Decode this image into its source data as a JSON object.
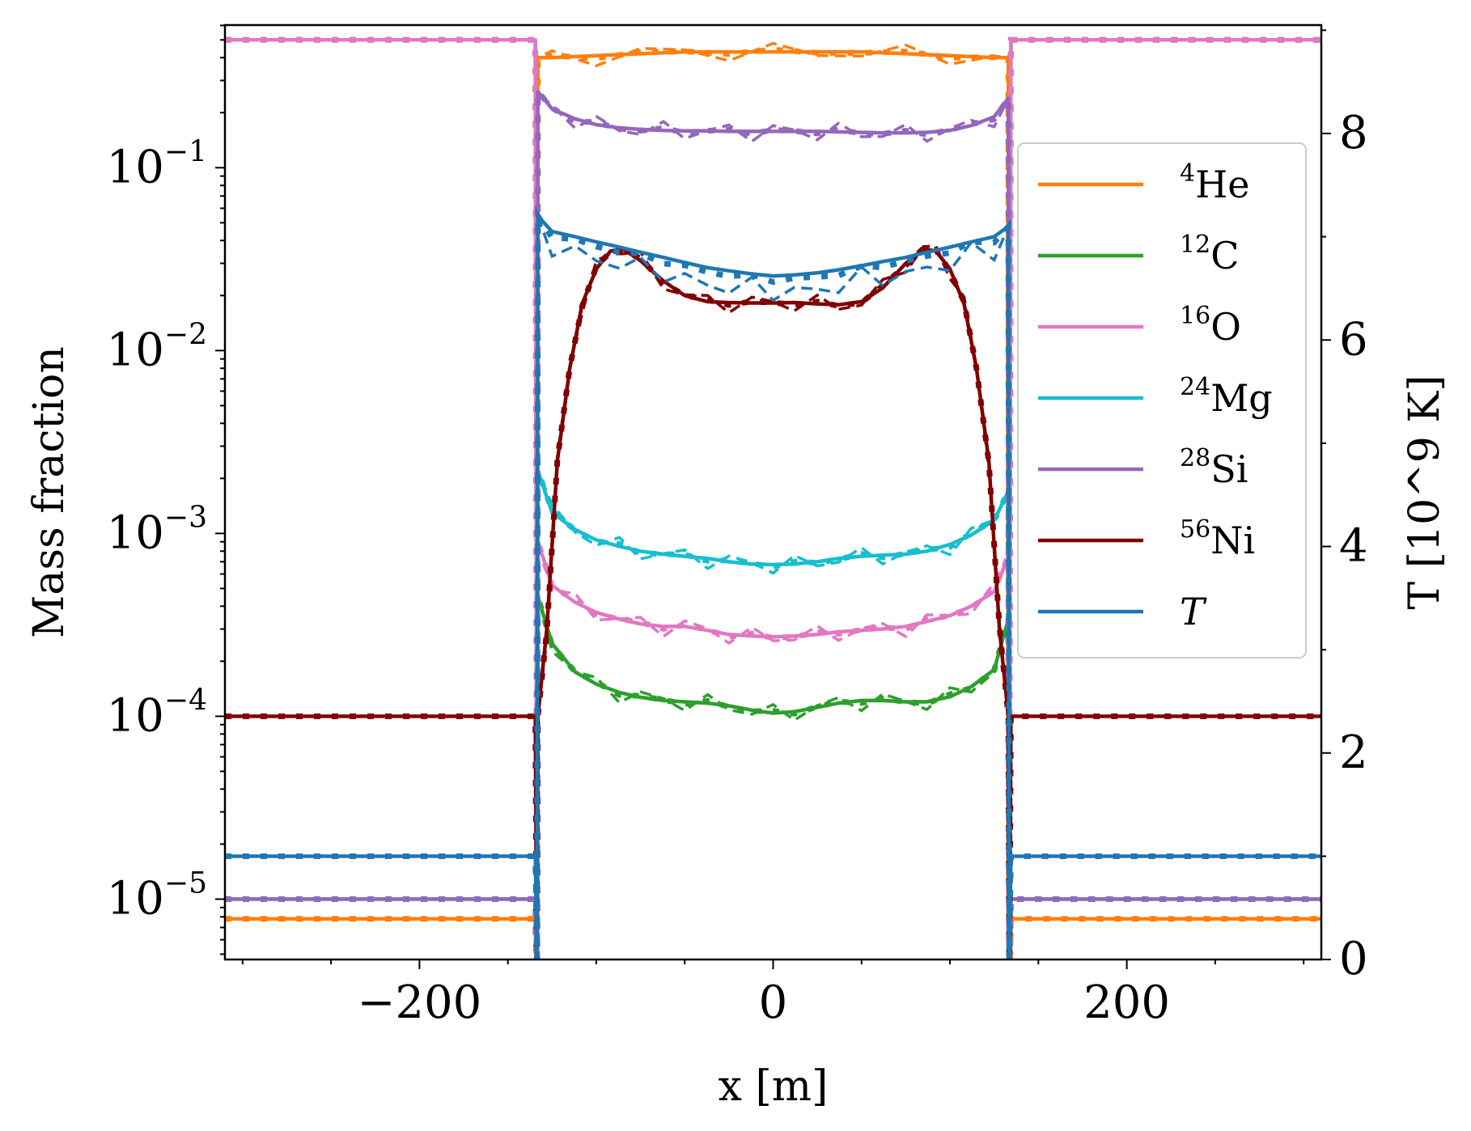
{
  "chart_data": {
    "type": "line",
    "xlabel": "x [m]",
    "ylabel_left": "Mass fraction",
    "ylabel_right": "T [10^9 K]",
    "xlim": [
      -310,
      310
    ],
    "ylim_left_log10": [
      -5.33,
      -0.22
    ],
    "ylim_right": [
      0,
      9.05
    ],
    "x_ticks": [
      {
        "value": -200,
        "label": "−200"
      },
      {
        "value": 0,
        "label": "0"
      },
      {
        "value": 200,
        "label": "200"
      }
    ],
    "y_left_ticks": [
      {
        "exp": -1,
        "base": "10",
        "sup": "−1"
      },
      {
        "exp": -2,
        "base": "10",
        "sup": "−2"
      },
      {
        "exp": -3,
        "base": "10",
        "sup": "−3"
      },
      {
        "exp": -4,
        "base": "10",
        "sup": "−4"
      },
      {
        "exp": -5,
        "base": "10",
        "sup": "−5"
      }
    ],
    "y_right_ticks": [
      {
        "value": 0,
        "label": "0"
      },
      {
        "value": 2,
        "label": "2"
      },
      {
        "value": 4,
        "label": "4"
      },
      {
        "value": 6,
        "label": "6"
      },
      {
        "value": 8,
        "label": "8"
      }
    ],
    "burn_front_m": 133,
    "series": [
      {
        "key": "he4",
        "mass": "4",
        "symbol": "He",
        "color": "#ff7f0e",
        "axis": "left",
        "outside": 7.8e-06,
        "x": [
          -133,
          -125,
          -100,
          -75,
          -50,
          -25,
          0,
          25,
          50,
          75,
          100,
          125,
          133
        ],
        "values": [
          0.4,
          0.4,
          0.41,
          0.42,
          0.43,
          0.43,
          0.43,
          0.43,
          0.43,
          0.42,
          0.41,
          0.4,
          0.4
        ]
      },
      {
        "key": "c12",
        "mass": "12",
        "symbol": "C",
        "color": "#2ca02c",
        "axis": "left",
        "outside": 0.5,
        "x": [
          -133,
          -125,
          -112,
          -100,
          -87,
          -75,
          -62,
          -50,
          -37,
          -25,
          -12,
          0,
          12,
          25,
          37,
          50,
          62,
          75,
          87,
          100,
          112,
          125,
          133
        ],
        "values": [
          0.00045,
          0.00025,
          0.000175,
          0.00015,
          0.000135,
          0.000127,
          0.000122,
          0.00012,
          0.000118,
          0.000114,
          0.000108,
          0.000104,
          0.000106,
          0.000112,
          0.000118,
          0.000122,
          0.000122,
          0.00012,
          0.00012,
          0.000128,
          0.000145,
          0.00018,
          0.00034
        ]
      },
      {
        "key": "o16",
        "mass": "16",
        "symbol": "O",
        "color": "#e377c2",
        "axis": "left",
        "outside": 0.5,
        "x": [
          -133,
          -125,
          -112,
          -100,
          -87,
          -75,
          -62,
          -50,
          -37,
          -25,
          -12,
          0,
          12,
          25,
          37,
          50,
          62,
          75,
          87,
          100,
          112,
          125,
          133
        ],
        "values": [
          0.0009,
          0.00052,
          0.00042,
          0.00037,
          0.00034,
          0.00032,
          0.00031,
          0.00031,
          0.000295,
          0.00028,
          0.000275,
          0.000272,
          0.000275,
          0.00028,
          0.00029,
          0.000295,
          0.0003,
          0.00031,
          0.00033,
          0.000355,
          0.0004,
          0.00048,
          0.00075
        ]
      },
      {
        "key": "mg24",
        "mass": "24",
        "symbol": "Mg",
        "color": "#17becf",
        "axis": "left",
        "outside": 1e-05,
        "x": [
          -133,
          -125,
          -112,
          -100,
          -87,
          -75,
          -62,
          -50,
          -37,
          -25,
          -12,
          0,
          12,
          25,
          37,
          50,
          62,
          75,
          87,
          100,
          112,
          125,
          133
        ],
        "values": [
          0.0022,
          0.0013,
          0.00105,
          0.00092,
          0.00085,
          0.0008,
          0.00077,
          0.00075,
          0.00073,
          0.0007,
          0.00068,
          0.000675,
          0.00068,
          0.0007,
          0.00073,
          0.00075,
          0.00076,
          0.00077,
          0.0008,
          0.00087,
          0.00098,
          0.00118,
          0.0017
        ]
      },
      {
        "key": "si28",
        "mass": "28",
        "symbol": "Si",
        "color": "#9467bd",
        "axis": "left",
        "outside": 1e-05,
        "x": [
          -133,
          -125,
          -112,
          -100,
          -87,
          -75,
          -62,
          -50,
          -37,
          -25,
          -12,
          0,
          12,
          25,
          37,
          50,
          62,
          75,
          87,
          100,
          112,
          125,
          133
        ],
        "values": [
          0.26,
          0.21,
          0.185,
          0.172,
          0.165,
          0.162,
          0.16,
          0.159,
          0.159,
          0.158,
          0.158,
          0.158,
          0.158,
          0.158,
          0.157,
          0.156,
          0.155,
          0.155,
          0.156,
          0.16,
          0.17,
          0.19,
          0.24
        ]
      },
      {
        "key": "ni56",
        "mass": "56",
        "symbol": "Ni",
        "color": "#800000",
        "axis": "left",
        "outside": 0.0001,
        "x": [
          -133,
          -128,
          -122,
          -115,
          -108,
          -100,
          -92,
          -85,
          -75,
          -62,
          -50,
          -37,
          -25,
          -12,
          0,
          12,
          25,
          37,
          50,
          62,
          75,
          85,
          92,
          100,
          108,
          115,
          122,
          128,
          133
        ],
        "values": [
          0.0001,
          0.0003,
          0.0025,
          0.008,
          0.018,
          0.028,
          0.035,
          0.036,
          0.031,
          0.024,
          0.02,
          0.0185,
          0.0183,
          0.0182,
          0.0182,
          0.0183,
          0.018,
          0.0178,
          0.0185,
          0.022,
          0.03,
          0.036,
          0.035,
          0.028,
          0.018,
          0.008,
          0.0025,
          0.0003,
          0.0001
        ]
      },
      {
        "key": "T",
        "label": "T",
        "color": "#1f77b4",
        "axis": "right",
        "outside": 1.0,
        "x": [
          -133,
          -125,
          -112,
          -100,
          -87,
          -75,
          -62,
          -50,
          -37,
          -25,
          -12,
          0,
          12,
          25,
          37,
          50,
          62,
          75,
          87,
          100,
          112,
          125,
          133
        ],
        "values": [
          7.2,
          7.05,
          7.0,
          6.95,
          6.9,
          6.85,
          6.8,
          6.75,
          6.7,
          6.67,
          6.64,
          6.62,
          6.63,
          6.65,
          6.68,
          6.72,
          6.76,
          6.8,
          6.85,
          6.9,
          6.95,
          7.0,
          7.1
        ]
      }
    ]
  }
}
